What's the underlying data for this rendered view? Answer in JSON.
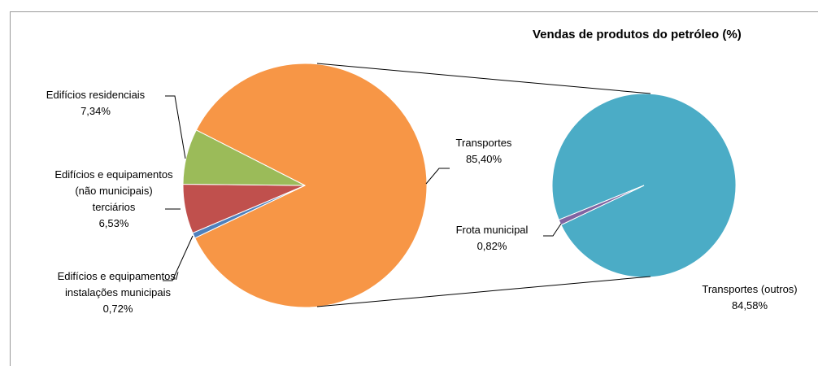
{
  "chart_data": {
    "type": "pie_of_pie",
    "title": "Vendas de produtos do petróleo (%)",
    "categories": [
      "Edifícios residenciais",
      "Edifícios e equipamentos (não municipais) terciários",
      "Edifícios e equipamentos/ instalações municipais",
      "Transportes"
    ],
    "values": [
      7.34,
      6.53,
      0.72,
      85.4
    ],
    "value_labels": [
      "7,34%",
      "6,53%",
      "0,72%",
      "85,40%"
    ],
    "colors": [
      "#9bbb59",
      "#c0504d",
      "#4f81bd",
      "#f79646"
    ],
    "secondary": {
      "categories": [
        "Frota municipal",
        "Transportes (outros)"
      ],
      "values": [
        0.82,
        84.58
      ],
      "value_labels": [
        "0,82%",
        "84,58%"
      ],
      "colors": [
        "#8064a2",
        "#4bacc6"
      ]
    }
  }
}
